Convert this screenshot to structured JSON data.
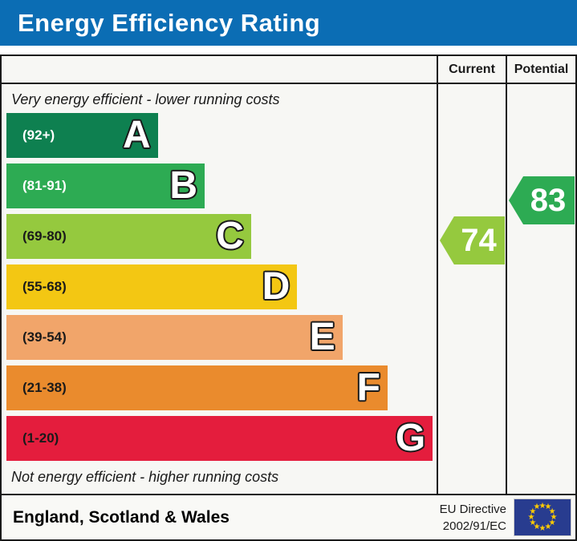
{
  "title_bar": {
    "title": "Energy Efficiency Rating",
    "bg_color": "#0b6db4"
  },
  "table": {
    "headers": {
      "current": "Current",
      "potential": "Potential"
    },
    "caption_top": "Very energy efficient - lower running costs",
    "caption_bottom": "Not energy efficient - higher running costs"
  },
  "chart_data": {
    "type": "bar",
    "title": "Energy Efficiency Rating",
    "orientation": "horizontal",
    "bands": [
      {
        "letter": "A",
        "range_label": "(92+)",
        "range": [
          92,
          100
        ],
        "color": "#0e8050",
        "range_label_color": "#ffffff",
        "width_pct": 35.2
      },
      {
        "letter": "B",
        "range_label": "(81-91)",
        "range": [
          81,
          91
        ],
        "color": "#2dab53",
        "range_label_color": "#ffffff",
        "width_pct": 46.1
      },
      {
        "letter": "C",
        "range_label": "(69-80)",
        "range": [
          69,
          80
        ],
        "color": "#95c93e",
        "range_label_color": "#1a1a1a",
        "width_pct": 56.9
      },
      {
        "letter": "D",
        "range_label": "(55-68)",
        "range": [
          55,
          68
        ],
        "color": "#f3c713",
        "range_label_color": "#1a1a1a",
        "width_pct": 67.6
      },
      {
        "letter": "E",
        "range_label": "(39-54)",
        "range": [
          39,
          54
        ],
        "color": "#f1a56a",
        "range_label_color": "#1a1a1a",
        "width_pct": 78.1
      },
      {
        "letter": "F",
        "range_label": "(21-38)",
        "range": [
          21,
          38
        ],
        "color": "#ea8b2d",
        "range_label_color": "#1a1a1a",
        "width_pct": 88.6
      },
      {
        "letter": "G",
        "range_label": "(1-20)",
        "range": [
          1,
          20
        ],
        "color": "#e41d3d",
        "range_label_color": "#1a1a1a",
        "width_pct": 99.1
      }
    ],
    "current": {
      "value": "74",
      "band": "C",
      "color": "#95c93e"
    },
    "potential": {
      "value": "83",
      "band": "B",
      "color": "#2dab53"
    }
  },
  "footer": {
    "region": "England, Scotland & Wales",
    "directive_line1": "EU Directive",
    "directive_line2": "2002/91/EC",
    "eu_flag": {
      "bg": "#283c8f",
      "star_color": "#ffcc00"
    }
  }
}
